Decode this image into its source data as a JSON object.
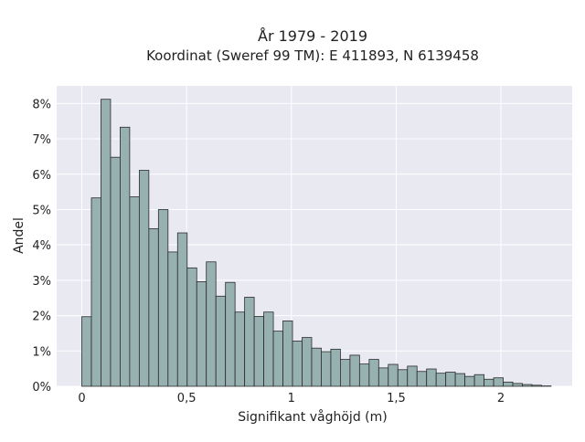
{
  "chart_data": {
    "type": "bar",
    "title_line1": "År 1979 - 2019",
    "title_line2": "Koordinat (Sweref 99 TM): E 411893, N 6139458",
    "xlabel": "Signifikant våghöjd (m)",
    "ylabel": "Andel",
    "xlim": [
      -0.12,
      2.34
    ],
    "ylim": [
      0,
      8.5
    ],
    "grid": true,
    "bin_width": 0.0457,
    "x_ticks": [
      {
        "value": 0,
        "label": "0"
      },
      {
        "value": 0.5,
        "label": "0,5"
      },
      {
        "value": 1,
        "label": "1"
      },
      {
        "value": 1.5,
        "label": "1,5"
      },
      {
        "value": 2,
        "label": "2"
      }
    ],
    "y_ticks": [
      {
        "value": 0,
        "label": "0%"
      },
      {
        "value": 1,
        "label": "1%"
      },
      {
        "value": 2,
        "label": "2%"
      },
      {
        "value": 3,
        "label": "3%"
      },
      {
        "value": 4,
        "label": "4%"
      },
      {
        "value": 5,
        "label": "5%"
      },
      {
        "value": 6,
        "label": "6%"
      },
      {
        "value": 7,
        "label": "7%"
      },
      {
        "value": 8,
        "label": "8%"
      }
    ],
    "x": [
      0.0,
      0.0457,
      0.0914,
      0.1371,
      0.1828,
      0.2285,
      0.2742,
      0.3199,
      0.3656,
      0.4113,
      0.457,
      0.5027,
      0.5484,
      0.5941,
      0.6398,
      0.6855,
      0.7312,
      0.7769,
      0.8226,
      0.8683,
      0.914,
      0.9597,
      1.0054,
      1.0511,
      1.0968,
      1.1425,
      1.1882,
      1.2339,
      1.2796,
      1.3253,
      1.371,
      1.4167,
      1.4624,
      1.5081,
      1.5538,
      1.5995,
      1.6452,
      1.6909,
      1.7366,
      1.7823,
      1.828,
      1.8737,
      1.9194,
      1.9651,
      2.0108,
      2.0565,
      2.1022,
      2.1479,
      2.1936
    ],
    "values": [
      1.97,
      5.33,
      8.12,
      6.48,
      7.33,
      5.36,
      6.11,
      4.46,
      5.0,
      3.8,
      4.34,
      3.35,
      2.96,
      3.52,
      2.55,
      2.94,
      2.1,
      2.52,
      1.98,
      2.1,
      1.56,
      1.85,
      1.28,
      1.38,
      1.08,
      0.98,
      1.05,
      0.76,
      0.88,
      0.63,
      0.76,
      0.52,
      0.62,
      0.47,
      0.57,
      0.42,
      0.49,
      0.37,
      0.4,
      0.36,
      0.28,
      0.33,
      0.2,
      0.24,
      0.12,
      0.08,
      0.05,
      0.03,
      0.01
    ],
    "colors": {
      "background": "#ffffff",
      "plot_background": "#e9e9f2",
      "grid": "#ffffff",
      "bar_fill": "#97b0b0",
      "bar_edge": "#2b2b2b"
    }
  }
}
